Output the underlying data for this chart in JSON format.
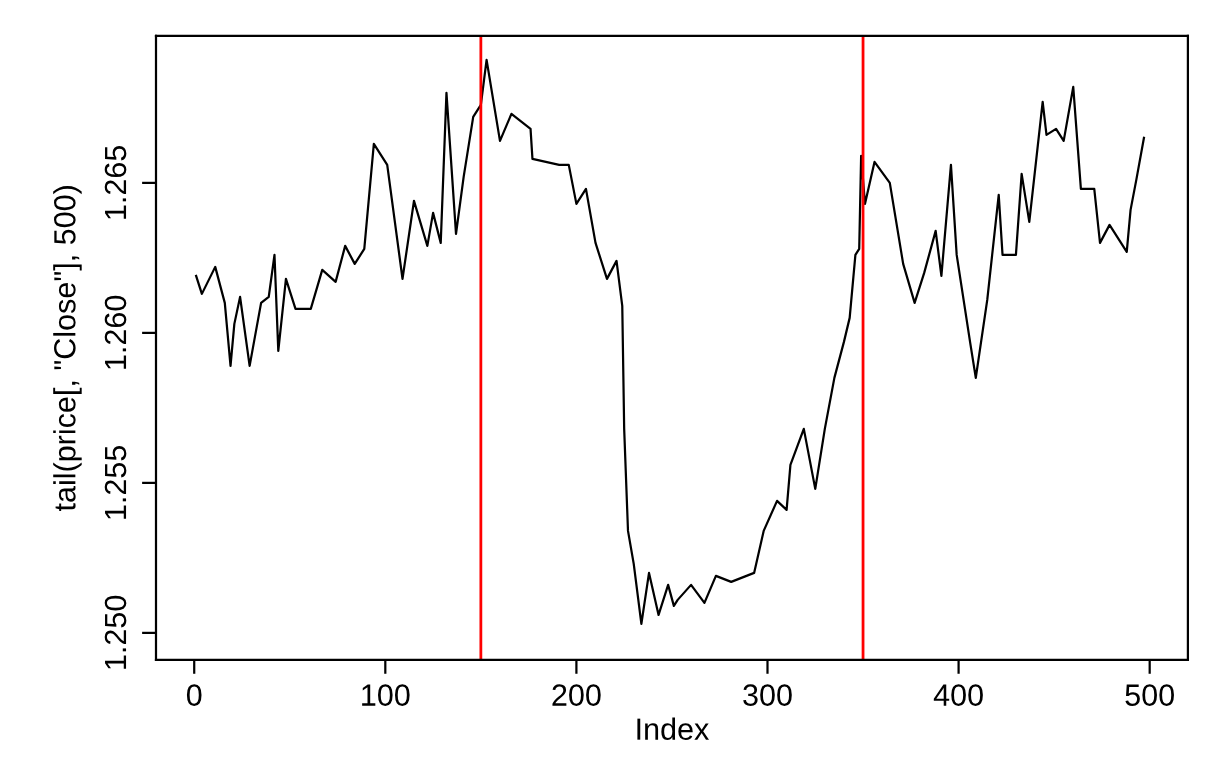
{
  "chart_data": {
    "type": "line",
    "xlabel": "Index",
    "ylabel": "tail(price[, \"Close\"], 500)",
    "xlim": [
      -20,
      520
    ],
    "ylim": [
      1.2491,
      1.2699
    ],
    "xticks": [
      0,
      100,
      200,
      300,
      400,
      500
    ],
    "yticks": [
      {
        "value": 1.25,
        "label": "1.250"
      },
      {
        "value": 1.255,
        "label": "1.255"
      },
      {
        "value": 1.26,
        "label": "1.260"
      },
      {
        "value": 1.265,
        "label": "1.265"
      }
    ],
    "grid": false,
    "marker": "none",
    "line_style": "solid",
    "series": [
      {
        "color": "#000000",
        "x": [
          1,
          4,
          11,
          16,
          19,
          21,
          24,
          29,
          35,
          39,
          42,
          44,
          48,
          53,
          61,
          67,
          74,
          79,
          84,
          89,
          94,
          101,
          105,
          109,
          115,
          122,
          125,
          129,
          132,
          137,
          141,
          146,
          150,
          153,
          160,
          166,
          176,
          177,
          191,
          196,
          200,
          205,
          210,
          216,
          221,
          224,
          225,
          227,
          230,
          234,
          238,
          243,
          248,
          251,
          253,
          260,
          267,
          273,
          281,
          293,
          298,
          305,
          310,
          312,
          319,
          325,
          330,
          335,
          340,
          343,
          346,
          348,
          349,
          351,
          356,
          364,
          371,
          377,
          382,
          388,
          391,
          396,
          399,
          406,
          409,
          415,
          421,
          423,
          430,
          433,
          437,
          444,
          446,
          451,
          455,
          460,
          464,
          471,
          474,
          479,
          488,
          490,
          493,
          497
        ],
        "values": [
          1.2619,
          1.2613,
          1.2622,
          1.261,
          1.2589,
          1.2603,
          1.2612,
          1.2589,
          1.261,
          1.2612,
          1.2626,
          1.2594,
          1.2618,
          1.2608,
          1.2608,
          1.2621,
          1.2617,
          1.2629,
          1.2623,
          1.2628,
          1.2663,
          1.2656,
          1.2637,
          1.2618,
          1.2644,
          1.2629,
          1.264,
          1.263,
          1.268,
          1.2633,
          1.2652,
          1.2672,
          1.2676,
          1.2691,
          1.2664,
          1.2673,
          1.2668,
          1.2658,
          1.2656,
          1.2656,
          1.2643,
          1.2648,
          1.263,
          1.2618,
          1.2624,
          1.2609,
          1.2568,
          1.2534,
          1.2523,
          1.2503,
          1.252,
          1.2506,
          1.2516,
          1.2509,
          1.2511,
          1.2516,
          1.251,
          1.2519,
          1.2517,
          1.252,
          1.2534,
          1.2544,
          1.2541,
          1.2556,
          1.2568,
          1.2548,
          1.2568,
          1.2585,
          1.2597,
          1.2605,
          1.2626,
          1.2628,
          1.2659,
          1.2643,
          1.2657,
          1.265,
          1.2623,
          1.261,
          1.262,
          1.2634,
          1.2619,
          1.2656,
          1.2626,
          1.2597,
          1.2585,
          1.2611,
          1.2646,
          1.2626,
          1.2626,
          1.2653,
          1.2637,
          1.2677,
          1.2666,
          1.2668,
          1.2664,
          1.2682,
          1.2648,
          1.2648,
          1.263,
          1.2636,
          1.2627,
          1.2641,
          1.2651,
          1.2665
        ]
      }
    ],
    "ref_lines": [
      {
        "axis": "x",
        "value": 150,
        "color": "#ff0000",
        "line_style": "solid"
      },
      {
        "axis": "x",
        "value": 350,
        "color": "#ff0000",
        "line_style": "solid"
      }
    ]
  }
}
